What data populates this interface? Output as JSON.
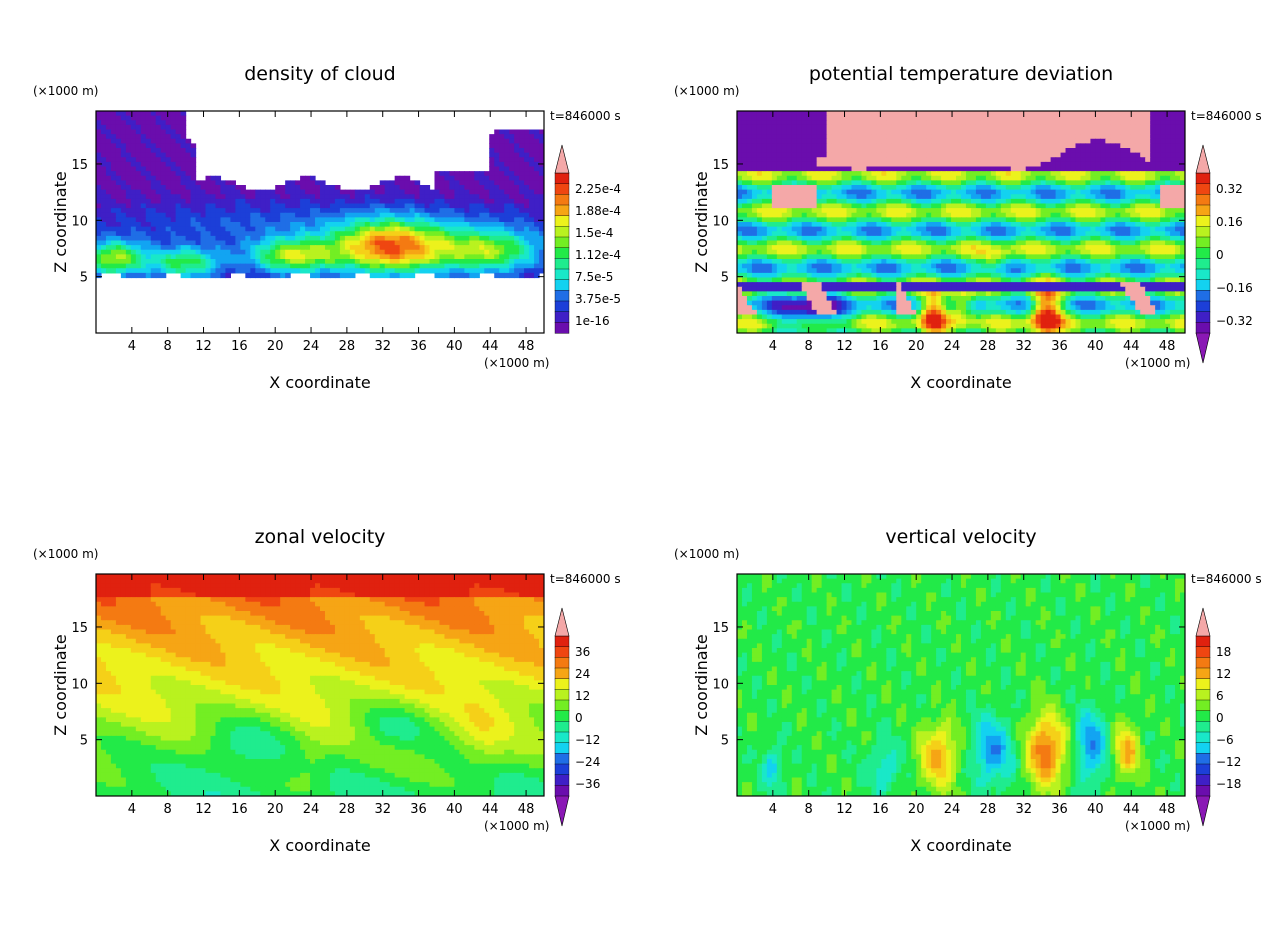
{
  "chart_data": [
    {
      "type": "heatmap",
      "title": "density of cloud",
      "xlabel": "X coordinate",
      "ylabel": "Z coordinate",
      "x_unit": "(×1000 m)",
      "y_unit": "(×1000 m)",
      "time_label": "t=846000 s",
      "xlim": [
        0,
        50
      ],
      "ylim": [
        0,
        19.7
      ],
      "xticks": [
        4,
        8,
        12,
        16,
        20,
        24,
        28,
        32,
        36,
        40,
        44,
        48
      ],
      "yticks": [
        5,
        10,
        15
      ],
      "colorbar": {
        "labels": [
          "2.25e-4",
          "1.88e-4",
          "1.5e-4",
          "1.12e-4",
          "7.5e-5",
          "3.75e-5",
          "1e-16"
        ],
        "vmin": 1e-16,
        "vmax": 0.000225,
        "extend": "max"
      },
      "field": "cloud"
    },
    {
      "type": "heatmap",
      "title": "potential temperature deviation",
      "xlabel": "X coordinate",
      "ylabel": "Z coordinate",
      "x_unit": "(×1000 m)",
      "y_unit": "(×1000 m)",
      "time_label": "t=846000 s",
      "xlim": [
        0,
        50
      ],
      "ylim": [
        0,
        19.7
      ],
      "xticks": [
        4,
        8,
        12,
        16,
        20,
        24,
        28,
        32,
        36,
        40,
        44,
        48
      ],
      "yticks": [
        5,
        10,
        15
      ],
      "colorbar": {
        "labels": [
          "0.32",
          "0.16",
          "0",
          "−0.16",
          "−0.32"
        ],
        "vmin": -0.32,
        "vmax": 0.32,
        "extend": "both"
      },
      "field": "theta"
    },
    {
      "type": "heatmap",
      "title": "zonal velocity",
      "xlabel": "X coordinate",
      "ylabel": "Z coordinate",
      "x_unit": "(×1000 m)",
      "y_unit": "(×1000 m)",
      "time_label": "t=846000 s",
      "xlim": [
        0,
        50
      ],
      "ylim": [
        0,
        19.7
      ],
      "xticks": [
        4,
        8,
        12,
        16,
        20,
        24,
        28,
        32,
        36,
        40,
        44,
        48
      ],
      "yticks": [
        5,
        10,
        15
      ],
      "colorbar": {
        "labels": [
          "36",
          "24",
          "12",
          "0",
          "−12",
          "−24",
          "−36"
        ],
        "vmin": -36,
        "vmax": 36,
        "extend": "both"
      },
      "field": "u"
    },
    {
      "type": "heatmap",
      "title": "vertical velocity",
      "xlabel": "X coordinate",
      "ylabel": "Z coordinate",
      "x_unit": "(×1000 m)",
      "y_unit": "(×1000 m)",
      "time_label": "t=846000 s",
      "xlim": [
        0,
        50
      ],
      "ylim": [
        0,
        19.7
      ],
      "xticks": [
        4,
        8,
        12,
        16,
        20,
        24,
        28,
        32,
        36,
        40,
        44,
        48
      ],
      "yticks": [
        5,
        10,
        15
      ],
      "colorbar": {
        "labels": [
          "18",
          "12",
          "6",
          "0",
          "−6",
          "−12",
          "−18"
        ],
        "vmin": -18,
        "vmax": 18,
        "extend": "both"
      },
      "field": "w"
    }
  ]
}
